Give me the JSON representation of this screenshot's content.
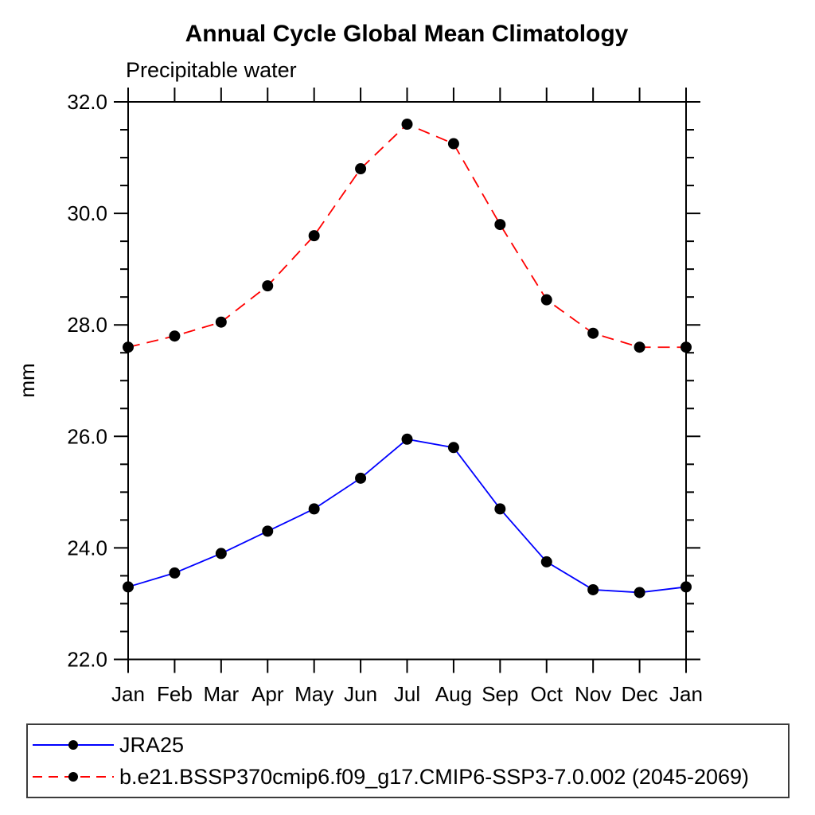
{
  "chart_data": {
    "type": "line",
    "title": "Annual Cycle Global Mean Climatology",
    "subtitle": "Precipitable water",
    "ylabel": "mm",
    "xlabel": "",
    "categories": [
      "Jan",
      "Feb",
      "Mar",
      "Apr",
      "May",
      "Jun",
      "Jul",
      "Aug",
      "Sep",
      "Oct",
      "Nov",
      "Dec",
      "Jan"
    ],
    "ylim": [
      22.0,
      32.0
    ],
    "ytick_major_step": 2.0,
    "ytick_minor_step": 0.5,
    "ytick_label_format_decimals": 1,
    "grid": false,
    "legend_position": "bottom-left-box",
    "frame_color": "#000000",
    "marker": "filled-circle",
    "series": [
      {
        "name": "JRA25",
        "color": "#0000ff",
        "line_style": "solid",
        "marker_color": "#000000",
        "values": [
          23.3,
          23.55,
          23.9,
          24.3,
          24.7,
          25.25,
          25.95,
          25.8,
          24.7,
          23.75,
          23.25,
          23.2,
          23.3
        ]
      },
      {
        "name": "b.e21.BSSP370cmip6.f09_g17.CMIP6-SSP3-7.0.002 (2045-2069)",
        "color": "#ff0000",
        "line_style": "dashed",
        "marker_color": "#000000",
        "values": [
          27.6,
          27.8,
          28.05,
          28.7,
          29.6,
          30.8,
          31.6,
          31.25,
          29.8,
          28.45,
          27.85,
          27.6,
          27.6
        ]
      }
    ]
  }
}
